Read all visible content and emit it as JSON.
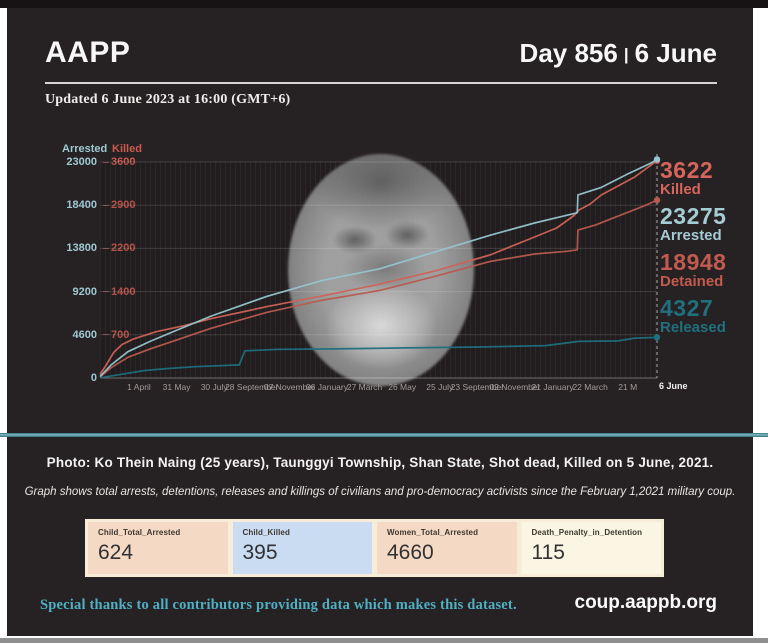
{
  "header": {
    "logo": "AAPP",
    "day_label": "Day 856",
    "separator": "|",
    "date_label": "6 June",
    "updated": "Updated 6 June 2023 at 16:00 (GMT+6)"
  },
  "chart_data": {
    "type": "line",
    "title": "Total arrests, detentions, releases and killings since the February 1, 2021 military coup",
    "grid": "on",
    "left_axis": {
      "label": "Arrested",
      "color": "#9fc9d2",
      "max": 23000,
      "ticks": [
        23000,
        18400,
        13800,
        9200,
        4600,
        0
      ]
    },
    "right_axis": {
      "label": "Killed",
      "color": "#cc5a50",
      "max": 3600,
      "ticks": [
        3600,
        2900,
        2200,
        1400,
        700
      ]
    },
    "x_ticks": [
      "1 April",
      "31 May",
      "30 July",
      "28 September",
      "07 November",
      "06 January",
      "27 March",
      "26 May",
      "25 July",
      "23 September",
      "02 November",
      "21 January",
      "22 March",
      "21 M"
    ],
    "x_end_label": "6 June",
    "series": [
      {
        "name": "Detained",
        "axis": "left",
        "color": "#b85a50",
        "final": 18948,
        "z": 1,
        "points": [
          [
            0,
            130
          ],
          [
            0.02,
            1100
          ],
          [
            0.05,
            2200
          ],
          [
            0.09,
            3100
          ],
          [
            0.13,
            3900
          ],
          [
            0.2,
            5300
          ],
          [
            0.3,
            7000
          ],
          [
            0.4,
            8300
          ],
          [
            0.5,
            9300
          ],
          [
            0.6,
            10800
          ],
          [
            0.7,
            12400
          ],
          [
            0.78,
            13200
          ],
          [
            0.84,
            13500
          ],
          [
            0.857,
            13650
          ],
          [
            0.858,
            15750
          ],
          [
            0.89,
            16300
          ],
          [
            0.92,
            17000
          ],
          [
            0.95,
            17700
          ],
          [
            0.98,
            18400
          ],
          [
            1,
            18948
          ]
        ]
      },
      {
        "name": "Killed",
        "axis": "right",
        "color": "#cf6258",
        "final": 3622,
        "z": 2,
        "points": [
          [
            0,
            60
          ],
          [
            0.01,
            200
          ],
          [
            0.025,
            430
          ],
          [
            0.04,
            560
          ],
          [
            0.06,
            650
          ],
          [
            0.08,
            710
          ],
          [
            0.1,
            770
          ],
          [
            0.15,
            870
          ],
          [
            0.2,
            990
          ],
          [
            0.3,
            1190
          ],
          [
            0.4,
            1370
          ],
          [
            0.5,
            1560
          ],
          [
            0.6,
            1780
          ],
          [
            0.7,
            2050
          ],
          [
            0.78,
            2350
          ],
          [
            0.82,
            2500
          ],
          [
            0.85,
            2700
          ],
          [
            0.86,
            2800
          ],
          [
            0.88,
            2900
          ],
          [
            0.9,
            3050
          ],
          [
            0.93,
            3200
          ],
          [
            0.96,
            3350
          ],
          [
            1,
            3622
          ]
        ]
      },
      {
        "name": "Released",
        "axis": "left",
        "color": "#1f6f7d",
        "final": 4327,
        "z": 3,
        "points": [
          [
            0,
            20
          ],
          [
            0.04,
            400
          ],
          [
            0.08,
            800
          ],
          [
            0.12,
            1000
          ],
          [
            0.17,
            1200
          ],
          [
            0.25,
            1400
          ],
          [
            0.26,
            2900
          ],
          [
            0.32,
            3050
          ],
          [
            0.42,
            3100
          ],
          [
            0.55,
            3200
          ],
          [
            0.68,
            3300
          ],
          [
            0.8,
            3450
          ],
          [
            0.86,
            3900
          ],
          [
            0.93,
            3950
          ],
          [
            0.96,
            4250
          ],
          [
            1,
            4327
          ]
        ]
      },
      {
        "name": "Arrested",
        "axis": "left",
        "color": "#96c5ce",
        "final": 23275,
        "z": 4,
        "points": [
          [
            0,
            150
          ],
          [
            0.02,
            1400
          ],
          [
            0.05,
            2800
          ],
          [
            0.09,
            3900
          ],
          [
            0.13,
            4900
          ],
          [
            0.2,
            6600
          ],
          [
            0.3,
            8700
          ],
          [
            0.4,
            10400
          ],
          [
            0.5,
            11600
          ],
          [
            0.6,
            13400
          ],
          [
            0.7,
            15200
          ],
          [
            0.78,
            16500
          ],
          [
            0.85,
            17500
          ],
          [
            0.857,
            17600
          ],
          [
            0.858,
            19500
          ],
          [
            0.9,
            20300
          ],
          [
            0.95,
            21800
          ],
          [
            0.99,
            22900
          ],
          [
            1,
            23275
          ]
        ]
      }
    ]
  },
  "stats": [
    {
      "value": "3622",
      "label": "Killed",
      "color": "#d6655c"
    },
    {
      "value": "23275",
      "label": "Arrested",
      "color": "#a5cbd5"
    },
    {
      "value": "18948",
      "label": "Detained",
      "color": "#c25a50"
    },
    {
      "value": "4327",
      "label": "Released",
      "color": "#20707e"
    }
  ],
  "photo_caption": "Photo: Ko Thein Naing (25 years), Taunggyi Township, Shan State, Shot dead, Killed on 5 June, 2021.",
  "graph_note": "Graph shows total arrests, detentions, releases and killings of civilians and pro-democracy activists since the February 1,2021 military coup.",
  "summary_cards": [
    {
      "label": "Child_Total_Arrested",
      "value": "624",
      "bg": "#f4d9c5"
    },
    {
      "label": "Child_Killed",
      "value": "395",
      "bg": "#c9dcf2"
    },
    {
      "label": "Women_Total_Arrested",
      "value": "4660",
      "bg": "#f4d9c5"
    },
    {
      "label": "Death_Penalty_in_Detention",
      "value": "115",
      "bg": "#fbf5e3"
    }
  ],
  "footer": {
    "thanks": "Special thanks to all contributors providing data which makes this dataset.",
    "site": "coup.aappb.org"
  }
}
